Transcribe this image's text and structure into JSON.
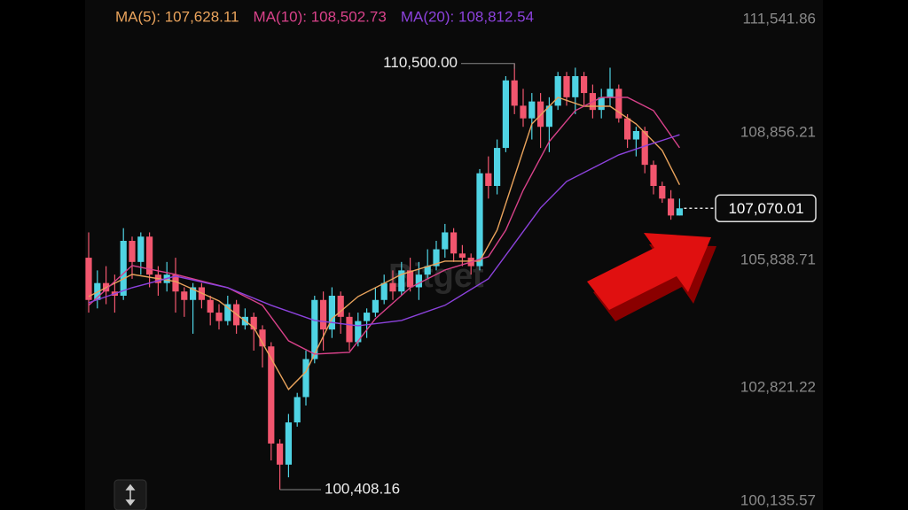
{
  "chart_data": {
    "type": "candlestick",
    "watermark": "Bitget",
    "up_color": "#4fd3e3",
    "down_color": "#f2566e",
    "ylim": [
      100135.57,
      111541.86
    ],
    "yticks": [
      {
        "value": 111541.86,
        "label": "111,541.86"
      },
      {
        "value": 108856.21,
        "label": "108,856.21"
      },
      {
        "value": 105838.71,
        "label": "105,838.71"
      },
      {
        "value": 102821.22,
        "label": "102,821.22"
      },
      {
        "value": 100135.57,
        "label": "100,135.57"
      }
    ],
    "grid": false,
    "open": [
      105900,
      104900,
      105300,
      105100,
      105000,
      106300,
      105800,
      106400,
      105500,
      105300,
      105500,
      105100,
      104900,
      105200,
      104900,
      104600,
      104400,
      104800,
      104300,
      104500,
      104200,
      103800,
      101500,
      101000,
      102000,
      102600,
      103500,
      104900,
      104200,
      105000,
      104500,
      103900,
      104400,
      104600,
      104900,
      105300,
      105100,
      105600,
      105200,
      105500,
      105700,
      106100,
      106500,
      106000,
      105900,
      105700,
      107900,
      107600,
      108500,
      110100,
      109500,
      109200,
      109600,
      109000,
      109500,
      110200,
      109700,
      110200,
      109800,
      109400,
      109700,
      109900,
      109200,
      108700,
      108900,
      108100,
      107600,
      107300,
      106900
    ],
    "high": [
      106500,
      105600,
      105700,
      105500,
      106600,
      106400,
      106500,
      106500,
      105700,
      105800,
      105900,
      105200,
      105300,
      105300,
      105000,
      104800,
      105000,
      104900,
      104700,
      104600,
      104300,
      103900,
      101600,
      102200,
      102700,
      103700,
      105000,
      105100,
      105200,
      105100,
      104600,
      104600,
      104700,
      105200,
      105500,
      105600,
      105800,
      105900,
      105800,
      106100,
      106300,
      106700,
      106600,
      106200,
      106000,
      108000,
      108300,
      108700,
      110200,
      110500,
      109900,
      109800,
      109800,
      109700,
      110300,
      110300,
      110400,
      110300,
      110000,
      109900,
      110400,
      110000,
      109300,
      109000,
      109000,
      108200,
      107700,
      107500,
      107300
    ],
    "low": [
      104600,
      104700,
      104800,
      104600,
      104900,
      105400,
      105500,
      105200,
      105000,
      105100,
      104600,
      104500,
      104100,
      104700,
      104300,
      104200,
      104300,
      104100,
      104200,
      103700,
      103300,
      101100,
      100408.16,
      100700,
      101900,
      102400,
      103400,
      103700,
      104000,
      104100,
      103700,
      103800,
      104000,
      104500,
      104800,
      104900,
      105000,
      105100,
      104900,
      105400,
      105600,
      105900,
      105800,
      105700,
      105500,
      105600,
      107300,
      107400,
      108400,
      109300,
      109000,
      108700,
      108500,
      108400,
      109400,
      109500,
      109300,
      109500,
      109200,
      109200,
      109500,
      109100,
      108500,
      108300,
      107900,
      107400,
      107200,
      106800,
      106900
    ],
    "close": [
      104900,
      105300,
      105100,
      105000,
      106300,
      105800,
      106400,
      105500,
      105300,
      105500,
      105100,
      104900,
      105200,
      104900,
      104600,
      104400,
      104800,
      104300,
      104500,
      104200,
      103800,
      101500,
      101000,
      102000,
      102600,
      103500,
      104900,
      104200,
      105000,
      104500,
      103900,
      104400,
      104600,
      104900,
      105300,
      105100,
      105600,
      105200,
      105500,
      105700,
      106100,
      106500,
      106000,
      105900,
      105700,
      107900,
      107600,
      108500,
      110100,
      109500,
      109200,
      109600,
      109000,
      109500,
      110200,
      109700,
      110200,
      109800,
      109400,
      109700,
      109900,
      109200,
      108700,
      108900,
      108100,
      107600,
      107300,
      106900,
      107070.01
    ],
    "ma_lines": [
      {
        "legend": "MA(5): 107,628.11",
        "color": "#e9a35c",
        "x": [
          0,
          5,
          10,
          15,
          19,
          23,
          25,
          28,
          31,
          36,
          41,
          45,
          47,
          49,
          51,
          54,
          57,
          60,
          63,
          66,
          68
        ],
        "values": [
          104982,
          105505,
          105338,
          104877,
          104248,
          102781,
          103200,
          104457,
          104982,
          105505,
          105820,
          105820,
          106553,
          107811,
          109068,
          109697,
          109487,
          109487,
          109068,
          108440,
          107628.11
        ]
      },
      {
        "legend": "MA(10): 108,502.73",
        "color": "#d8428a",
        "x": [
          0,
          5,
          10,
          16,
          20,
          23,
          26,
          30,
          33,
          37,
          41,
          46,
          48,
          50,
          53,
          56,
          59,
          62,
          65,
          68
        ],
        "values": [
          104773,
          105715,
          105505,
          105191,
          104773,
          103933,
          103619,
          103661,
          104457,
          105191,
          105610,
          105925,
          106553,
          107498,
          108650,
          109384,
          109697,
          109697,
          109384,
          108502.73
        ]
      },
      {
        "legend": "MA(20): 108,812.54",
        "color": "#8c42dc",
        "x": [
          0,
          5,
          10,
          16,
          21,
          26,
          31,
          36,
          41,
          46,
          49,
          52,
          55,
          58,
          61,
          64,
          68
        ],
        "values": [
          104835,
          105191,
          105463,
          105191,
          104773,
          104415,
          104290,
          104415,
          104773,
          105400,
          106240,
          107079,
          107706,
          108021,
          108335,
          108545,
          108812.54
        ]
      }
    ],
    "high_marker": {
      "value": 110500,
      "label": "110,500.00"
    },
    "low_marker": {
      "value": 100408.16,
      "label": "100,408.16"
    },
    "current_price": {
      "value": 107070.01,
      "label": "107,070.01"
    }
  }
}
